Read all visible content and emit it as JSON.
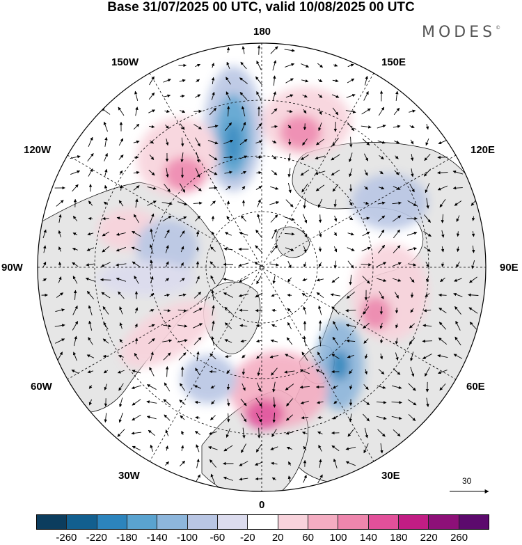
{
  "title": "Base 31/07/2025 00 UTC, valid 10/08/2025 00 UTC",
  "brand": "MODES",
  "brand_mark": "©",
  "longitude_labels": {
    "lon_180": "180",
    "lon_150w": "150W",
    "lon_150e": "150E",
    "lon_120w": "120W",
    "lon_120e": "120E",
    "lon_90w": "90W",
    "lon_90e": "90E",
    "lon_60w": "60W",
    "lon_60e": "60E",
    "lon_30w": "30W",
    "lon_30e": "30E",
    "lon_0": "0"
  },
  "reference_vector": {
    "value": "30"
  },
  "colorbar": {
    "ticks": [
      "-260",
      "-220",
      "-180",
      "-140",
      "-100",
      "-60",
      "-20",
      "20",
      "60",
      "100",
      "140",
      "180",
      "220",
      "260"
    ],
    "colors": [
      "#0c3d5e",
      "#125f8f",
      "#2c84bd",
      "#5aa3d0",
      "#8db6dc",
      "#b9c6e4",
      "#dcdcee",
      "#ffffff",
      "#f8d3dc",
      "#f4adc2",
      "#ee86ad",
      "#e2509a",
      "#c11d84",
      "#8d1078",
      "#5c0a6d"
    ]
  },
  "legend_colors": {
    "land": "#e6e6e6",
    "ocean": "#ffffff",
    "coast": "#000000"
  }
}
